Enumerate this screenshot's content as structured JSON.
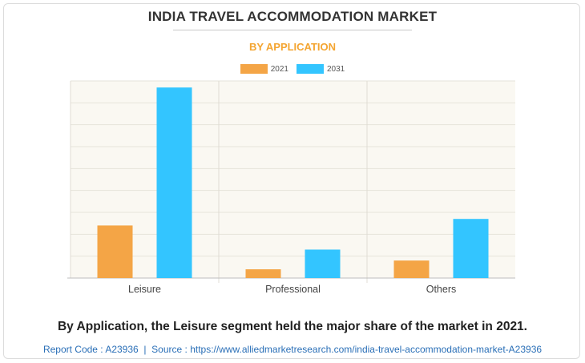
{
  "chart_data": {
    "type": "bar",
    "title": "INDIA TRAVEL ACCOMMODATION MARKET",
    "subtitle": "BY APPLICATION",
    "categories": [
      "Leisure",
      "Professional",
      "Others"
    ],
    "series": [
      {
        "name": "2021",
        "color": "#f4a546",
        "values": [
          24,
          4,
          8
        ]
      },
      {
        "name": "2031",
        "color": "#33c5ff",
        "values": [
          87,
          13,
          27
        ]
      }
    ],
    "ylim": [
      0,
      90
    ],
    "y_gridlines": 9,
    "grid": true,
    "y_tick_labels_shown": false,
    "legend_position": "top-center"
  },
  "caption": "By Application, the Leisure segment held the major share of the market in 2021.",
  "footer": {
    "report_code": "Report Code : A23936",
    "separator": "|",
    "source": "Source : https://www.alliedmarketresearch.com/india-travel-accommodation-market-A23936"
  }
}
